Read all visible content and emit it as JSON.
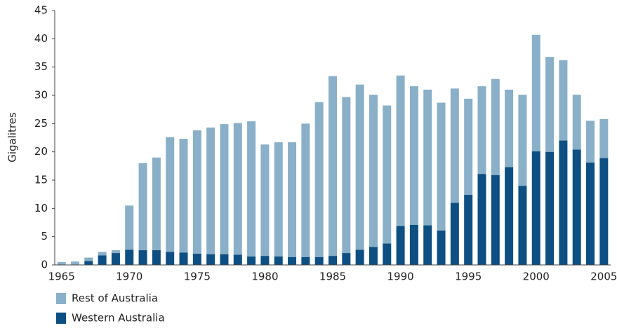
{
  "chart_data": {
    "type": "stacked_bar",
    "y_label": "Gigalitres",
    "categories": [
      "1965",
      null,
      null,
      null,
      null,
      "1970",
      null,
      null,
      null,
      null,
      "1975",
      null,
      null,
      null,
      null,
      "1980",
      null,
      null,
      null,
      null,
      "1985",
      null,
      null,
      null,
      null,
      "1990",
      null,
      null,
      null,
      null,
      "1995",
      null,
      null,
      null,
      null,
      "2000",
      null,
      null,
      null,
      null,
      "2005"
    ],
    "series": [
      {
        "name": "Rest of Australia",
        "color": "#8aafc8",
        "values": [
          0.5,
          0.6,
          0.6,
          0.6,
          0.5,
          7.8,
          15.4,
          16.4,
          20.3,
          20.1,
          21.8,
          22.4,
          23.0,
          23.3,
          23.9,
          19.7,
          20.2,
          20.3,
          23.6,
          27.4,
          31.8,
          27.6,
          29.2,
          26.9,
          24.4,
          26.6,
          24.5,
          24.0,
          22.6,
          20.2,
          17.0,
          15.5,
          17.0,
          13.7,
          16.1,
          20.6,
          16.8,
          14.2,
          9.7,
          7.4,
          6.9
        ]
      },
      {
        "name": "Western Australia",
        "color": "#0d4f82",
        "values": [
          0,
          0,
          0.7,
          1.7,
          2.1,
          2.7,
          2.6,
          2.6,
          2.3,
          2.2,
          2.0,
          1.9,
          1.9,
          1.8,
          1.5,
          1.6,
          1.5,
          1.4,
          1.4,
          1.4,
          1.6,
          2.1,
          2.7,
          3.2,
          3.8,
          6.9,
          7.1,
          7.0,
          6.1,
          11.0,
          12.4,
          16.1,
          15.9,
          17.3,
          14.0,
          20.1,
          20.0,
          22.0,
          20.4,
          18.1,
          18.9
        ]
      }
    ],
    "ylim": [
      0,
      45
    ],
    "yticks": [
      0,
      5,
      10,
      15,
      20,
      25,
      30,
      35,
      40,
      45
    ],
    "grid": false
  }
}
